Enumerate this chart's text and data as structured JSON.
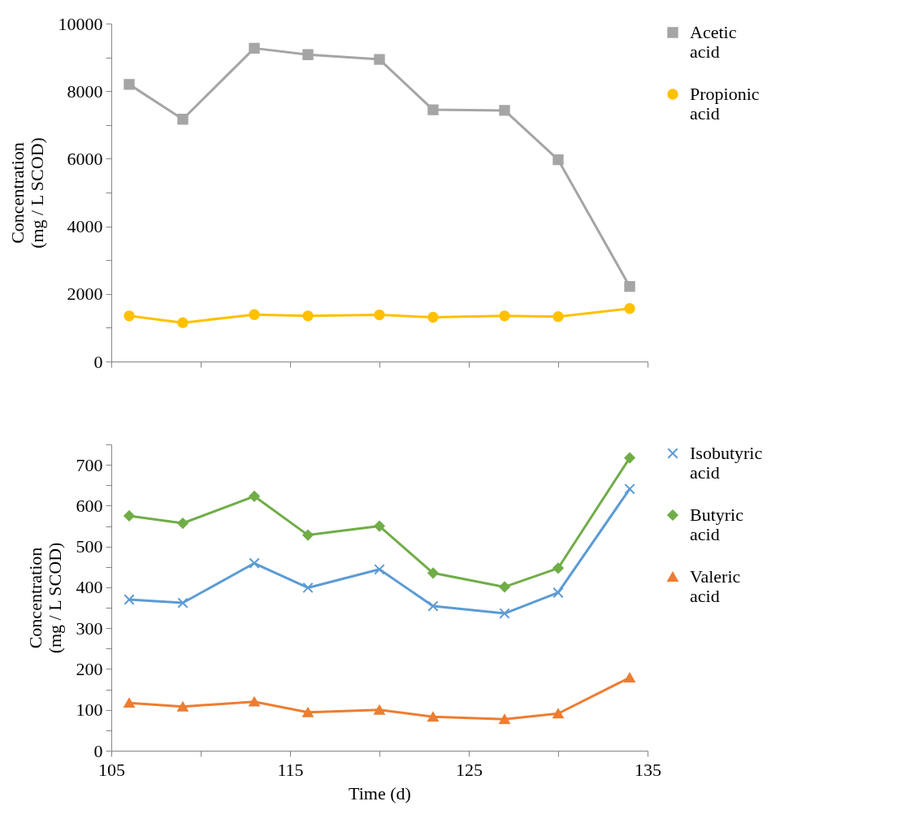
{
  "chart_data": [
    {
      "type": "line",
      "ylabel": "Concentration\n(mg / L SCOD)",
      "x": [
        106,
        109,
        113,
        116,
        120,
        123,
        127,
        130,
        134
      ],
      "series": [
        {
          "name": "Acetic acid",
          "color": "#a5a5a5",
          "marker": "square",
          "values": [
            8200,
            7170,
            9270,
            9080,
            8940,
            7450,
            7430,
            5970,
            2220
          ]
        },
        {
          "name": "Propionic acid",
          "color": "#ffc000",
          "marker": "circle",
          "values": [
            1350,
            1150,
            1390,
            1350,
            1380,
            1310,
            1350,
            1330,
            1570
          ]
        }
      ],
      "xlim": [
        105,
        135
      ],
      "xticks": [
        {
          "value": 105,
          "label": null
        },
        {
          "value": 110,
          "label": null
        },
        {
          "value": 115,
          "label": null
        },
        {
          "value": 120,
          "label": null
        },
        {
          "value": 125,
          "label": null
        },
        {
          "value": 130,
          "label": null
        },
        {
          "value": 135,
          "label": null
        }
      ],
      "ylim": [
        0,
        10000
      ],
      "yticks": [
        0,
        {
          "value": 1000,
          "label": null
        },
        2000,
        {
          "value": 3000,
          "label": null
        },
        4000,
        {
          "value": 5000,
          "label": null
        },
        6000,
        {
          "value": 7000,
          "label": null
        },
        8000,
        {
          "value": 9000,
          "label": null
        },
        10000
      ],
      "tick_labels": "y",
      "grid": false,
      "legend": "top right",
      "line_style": "solid"
    },
    {
      "type": "line",
      "xlabel": "Time (d)",
      "ylabel": "Concentration\n(mg / L SCOD)",
      "x": [
        106,
        109,
        113,
        116,
        120,
        123,
        127,
        130,
        134
      ],
      "series": [
        {
          "name": "Isobutyric acid",
          "color": "#5b9bd5",
          "marker": "cross",
          "values": [
            370,
            362,
            459,
            399,
            444,
            354,
            336,
            387,
            641
          ]
        },
        {
          "name": "Butyric acid",
          "color": "#70ad47",
          "marker": "diamond",
          "values": [
            575,
            557,
            623,
            528,
            550,
            435,
            401,
            447,
            717
          ]
        },
        {
          "name": "Valeric acid",
          "color": "#ed7d31",
          "marker": "triangle",
          "values": [
            117,
            108,
            120,
            94,
            100,
            83,
            77,
            91,
            179
          ]
        }
      ],
      "xlim": [
        105,
        135
      ],
      "xticks": [
        105,
        {
          "value": 110,
          "label": null
        },
        115,
        {
          "value": 120,
          "label": null
        },
        125,
        {
          "value": 130,
          "label": null
        },
        135
      ],
      "ylim": [
        0,
        750
      ],
      "yticks": [
        0,
        {
          "value": 50,
          "label": null
        },
        100,
        {
          "value": 150,
          "label": null
        },
        200,
        {
          "value": 250,
          "label": null
        },
        300,
        {
          "value": 350,
          "label": null
        },
        400,
        {
          "value": 450,
          "label": null
        },
        500,
        {
          "value": 550,
          "label": null
        },
        600,
        {
          "value": 650,
          "label": null
        },
        700,
        {
          "value": 750,
          "label": null
        }
      ],
      "grid": false,
      "legend": "top right",
      "line_style": "solid"
    }
  ]
}
